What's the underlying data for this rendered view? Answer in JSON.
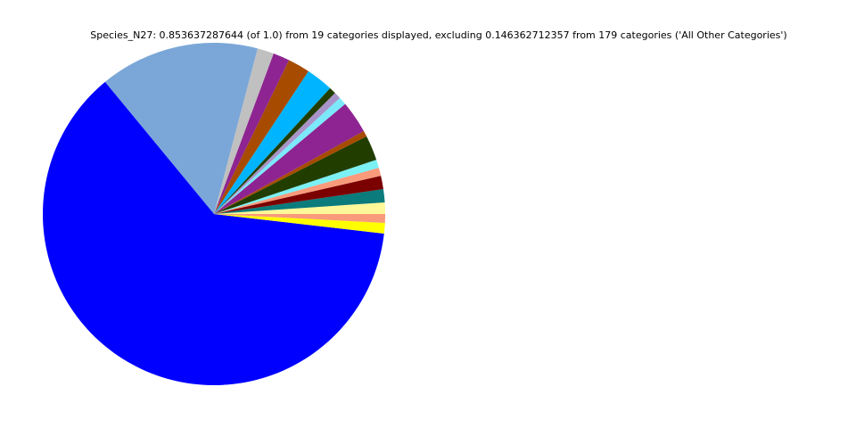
{
  "chart_data": {
    "type": "pie",
    "title": "Species_N27: 0.853637287644 (of 1.0) from 19 categories displayed, excluding 0.146362712357 from 179 categories ('All Other Categories')",
    "values": [
      0.0092,
      0.0107,
      0.0107,
      0.0066,
      0.0066,
      0.0202,
      0.0047,
      0.0261,
      0.0064,
      0.0055,
      0.0055,
      0.0218,
      0.0178,
      0.0133,
      0.0133,
      0.1287,
      0.5309,
      0.0085,
      0.0071
    ],
    "colors": [
      "#fff899",
      "#0b7b7b",
      "#7b0000",
      "#f99a7b",
      "#7bf0f5",
      "#213e00",
      "#a64b00",
      "#8e2491",
      "#7be9fa",
      "#a994c9",
      "#213e00",
      "#00b4ff",
      "#a64b00",
      "#8e2491",
      "#c0c0c0",
      "#7ba7d8",
      "#0000ff",
      "#ffff00",
      "#f99a7b"
    ]
  }
}
